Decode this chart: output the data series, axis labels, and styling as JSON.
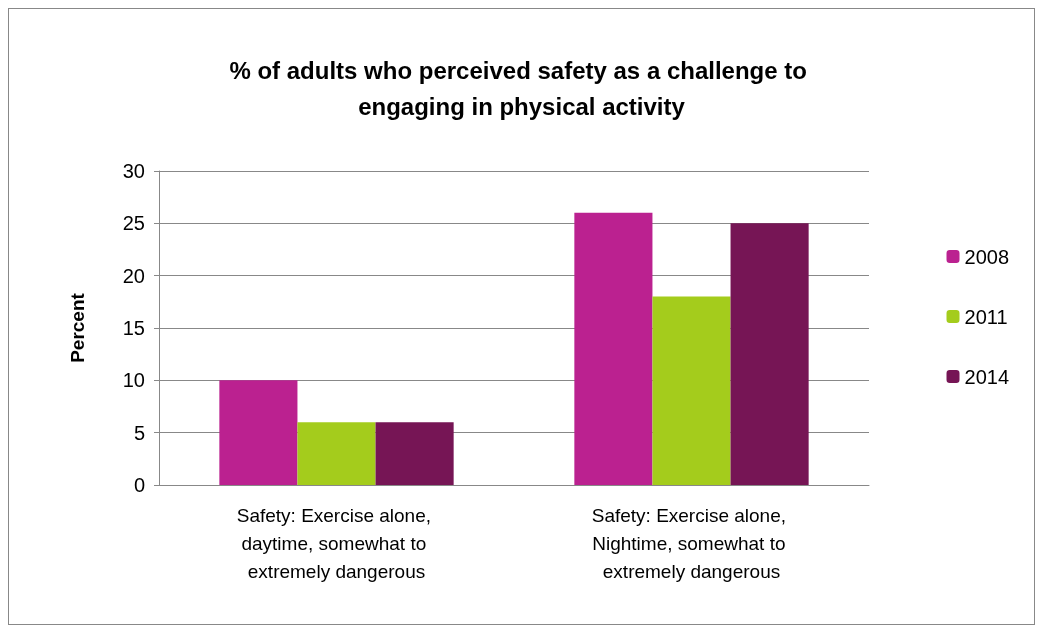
{
  "chart_data": {
    "type": "bar",
    "title": "% of adults who perceived safety as a challenge to engaging in physical activity",
    "ylabel": "Percent",
    "categories": [
      "Safety: Exercise alone, daytime, somewhat to extremely dangerous",
      "Safety: Exercise alone, Nightime, somewhat to extremely dangerous"
    ],
    "series": [
      {
        "name": "2008",
        "color": "#bb2190",
        "values": [
          10,
          26
        ]
      },
      {
        "name": "2011",
        "color": "#a4cc1c",
        "values": [
          6,
          18
        ]
      },
      {
        "name": "2014",
        "color": "#761555",
        "values": [
          6,
          25
        ]
      }
    ],
    "ylim": [
      0,
      30
    ],
    "yticks": [
      0,
      5,
      10,
      15,
      20,
      25,
      30
    ],
    "grid": "y",
    "legend": "right"
  }
}
